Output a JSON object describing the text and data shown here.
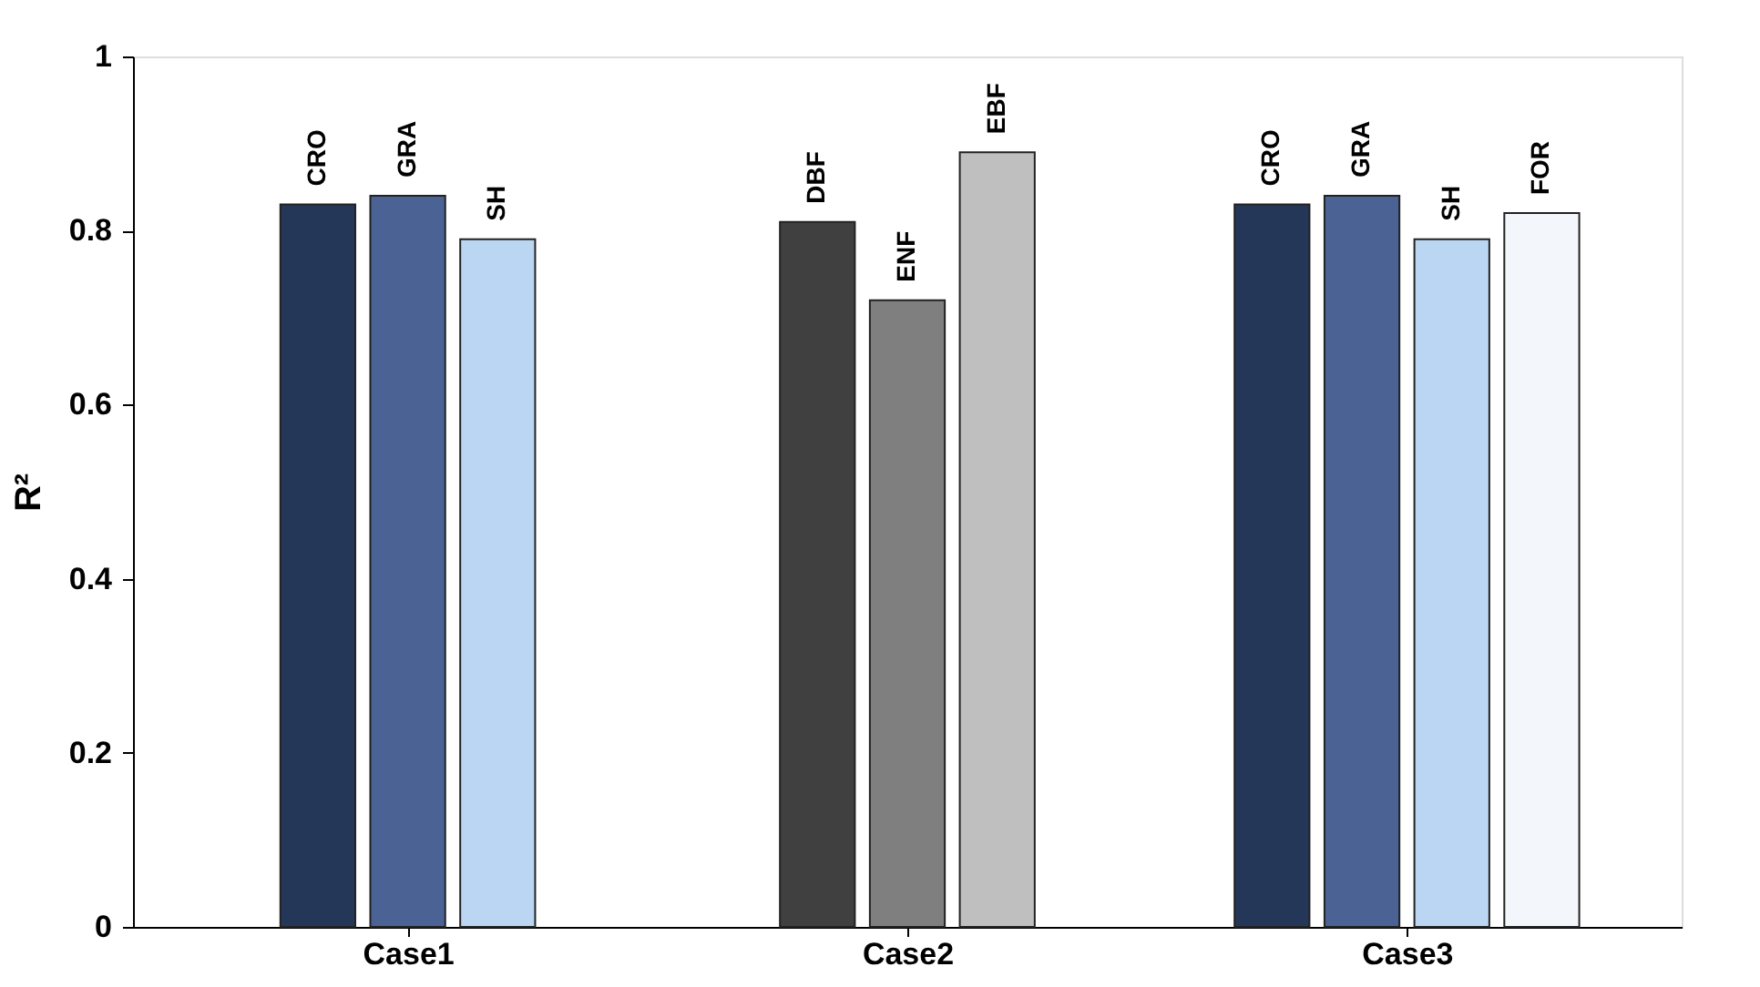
{
  "chart_data": {
    "type": "bar",
    "categories": [
      "Case1",
      "Case2",
      "Case3"
    ],
    "ylabel": "R²",
    "ylim": [
      0,
      1
    ],
    "yticks": [
      0,
      0.2,
      0.4,
      0.6,
      0.8,
      1
    ],
    "grid": false,
    "legend": false,
    "series": [
      {
        "name": "CRO",
        "color": "#253759",
        "values": [
          0.83,
          null,
          0.83
        ]
      },
      {
        "name": "GRA",
        "color": "#4a6294",
        "values": [
          0.84,
          null,
          0.84
        ]
      },
      {
        "name": "SH",
        "color": "#bad6f2",
        "values": [
          0.79,
          null,
          0.79
        ]
      },
      {
        "name": "DBF",
        "color": "#404040",
        "values": [
          null,
          0.81,
          null
        ]
      },
      {
        "name": "ENF",
        "color": "#7f7f7f",
        "values": [
          null,
          0.72,
          null
        ]
      },
      {
        "name": "EBF",
        "color": "#bfbfbf",
        "values": [
          null,
          0.89,
          null
        ]
      },
      {
        "name": "FOR",
        "color": "#f3f7fc",
        "values": [
          null,
          null,
          0.82
        ]
      }
    ]
  }
}
